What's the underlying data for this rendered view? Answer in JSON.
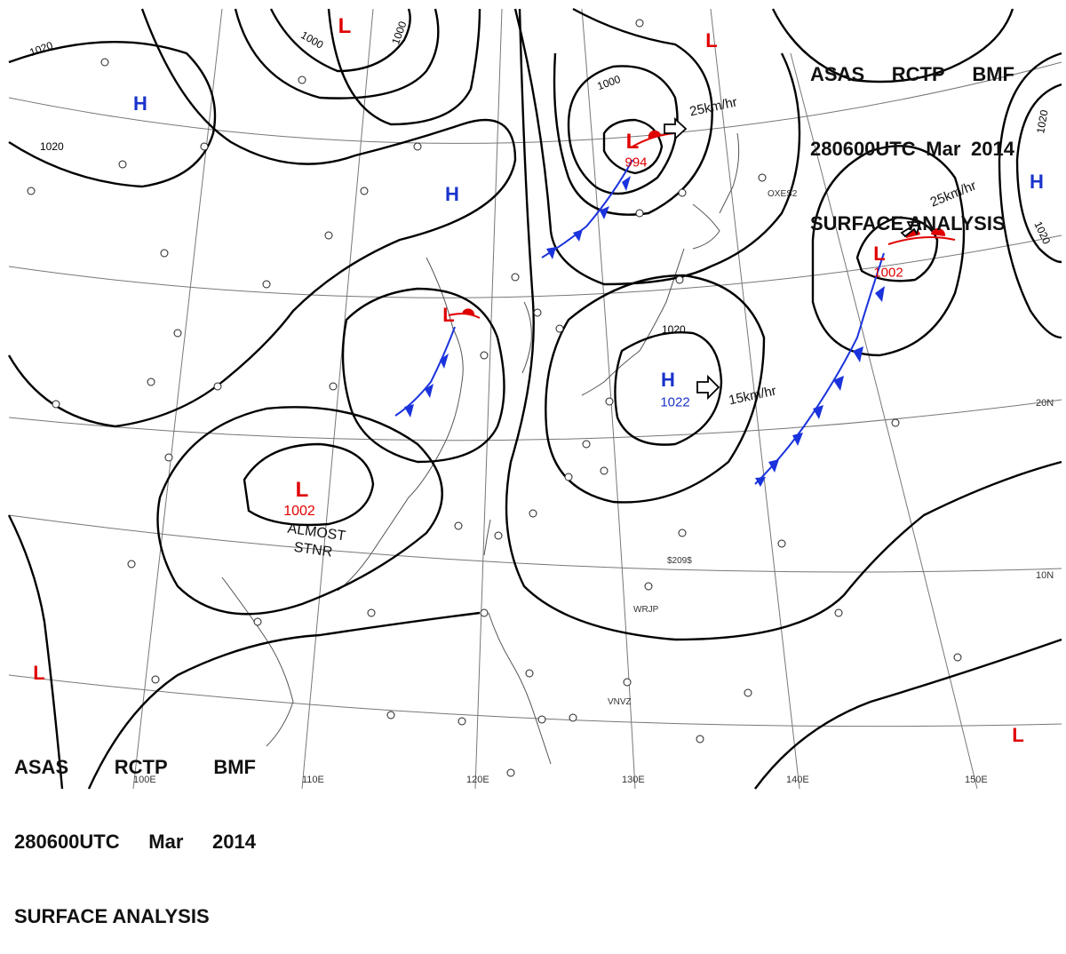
{
  "header_top_right": {
    "line1": [
      "ASAS",
      "RCTP",
      "BMF"
    ],
    "line2": [
      "280600UTC",
      "Mar",
      "2014"
    ],
    "line3": "SURFACE ANALYSIS"
  },
  "header_bottom_left": {
    "line1": [
      "ASAS",
      "RCTP",
      "BMF"
    ],
    "line2": [
      "280600UTC",
      "Mar",
      "2014"
    ],
    "line3": "SURFACE ANALYSIS"
  },
  "colors": {
    "isobar": "#000000",
    "low_marker": "#e00000",
    "high_marker": "#1a33cc",
    "cold_front": "#1a33dd",
    "warm_front": "#e00000",
    "coastline": "#555555",
    "gridline": "#666666"
  },
  "pressure_systems": [
    {
      "id": "L_top_center",
      "type": "low",
      "symbol": "L"
    },
    {
      "id": "H_west",
      "type": "high",
      "symbol": "H"
    },
    {
      "id": "H_north_china",
      "type": "high",
      "symbol": "H"
    },
    {
      "id": "L_north_korea",
      "type": "low",
      "symbol": "L",
      "pressure": "994"
    },
    {
      "id": "L_top_right",
      "type": "low",
      "symbol": "L"
    },
    {
      "id": "H_far_east",
      "type": "high",
      "symbol": "H"
    },
    {
      "id": "L_east_pacific",
      "type": "low",
      "symbol": "L",
      "pressure": "1002"
    },
    {
      "id": "L_east_china",
      "type": "low",
      "symbol": "L"
    },
    {
      "id": "H_japan_south",
      "type": "high",
      "symbol": "H",
      "pressure": "1022"
    },
    {
      "id": "L_south_china",
      "type": "low",
      "symbol": "L",
      "pressure": "1002"
    },
    {
      "id": "L_bottom_left",
      "type": "low",
      "symbol": "L"
    },
    {
      "id": "L_bottom_right",
      "type": "low",
      "symbol": "L"
    }
  ],
  "isobar_labels": [
    "1020",
    "1020",
    "1000",
    "1000",
    "1000",
    "1020",
    "1020",
    "1020"
  ],
  "motion_labels": {
    "north_low": "25km/hr",
    "east_low": "25km/hr",
    "japan_high": "15km/hr"
  },
  "stationary_note": [
    "ALMOST",
    "STNR"
  ],
  "longitude_labels": [
    "100E",
    "110E",
    "120E",
    "130E",
    "140E",
    "150E"
  ],
  "latitude_labels": [
    "20N",
    "10N"
  ],
  "ship_callsigns": [
    "OXES2",
    "$209$",
    "WRJP",
    "VNVZ"
  ]
}
